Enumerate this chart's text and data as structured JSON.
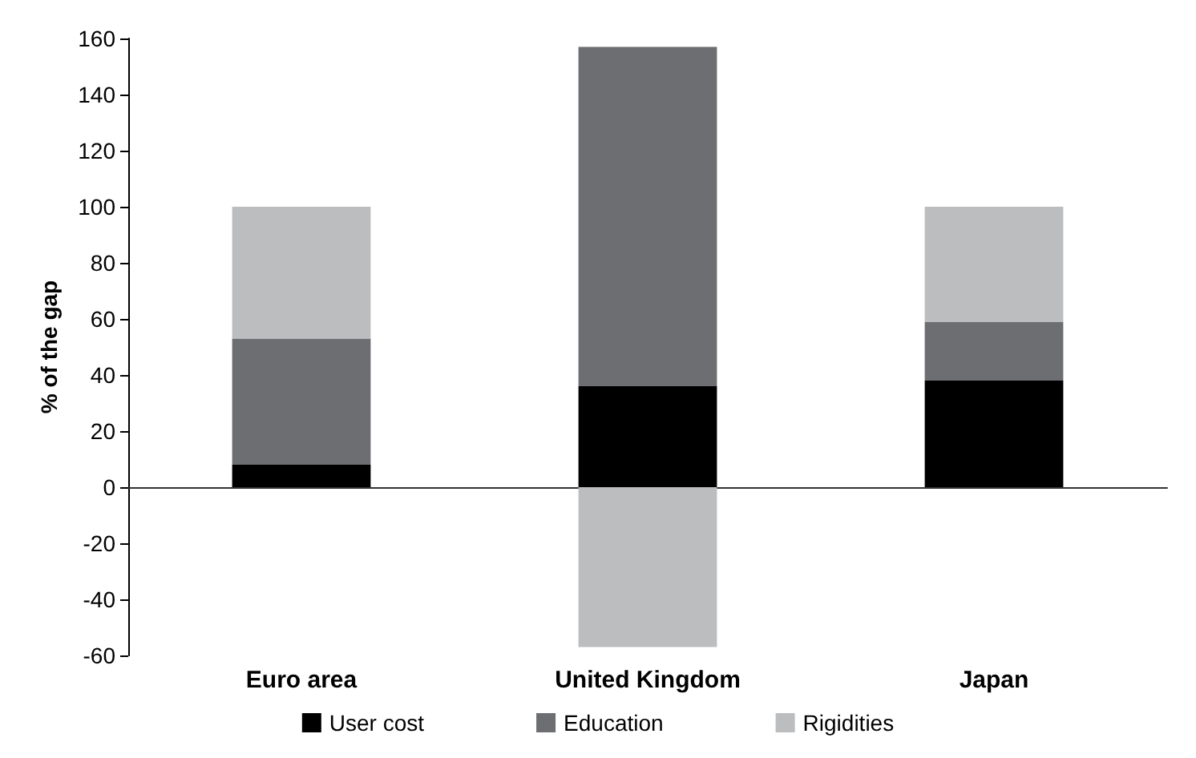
{
  "chart_data": {
    "type": "bar",
    "stacked": true,
    "ylabel": "% of the gap",
    "categories": [
      "Euro area",
      "United Kingdom",
      "Japan"
    ],
    "series": [
      {
        "name": "User cost",
        "color": "#000000",
        "values": [
          8,
          36,
          38
        ]
      },
      {
        "name": "Education",
        "color": "#6d6e71",
        "values": [
          45,
          121,
          21
        ]
      },
      {
        "name": "Rigidities",
        "color": "#bcbdbf",
        "values": [
          47,
          -57,
          41
        ]
      }
    ],
    "ylim": [
      -60,
      160
    ],
    "yticks": [
      -60,
      -40,
      -20,
      0,
      20,
      40,
      60,
      80,
      100,
      120,
      140,
      160
    ],
    "legend": "bottom"
  }
}
